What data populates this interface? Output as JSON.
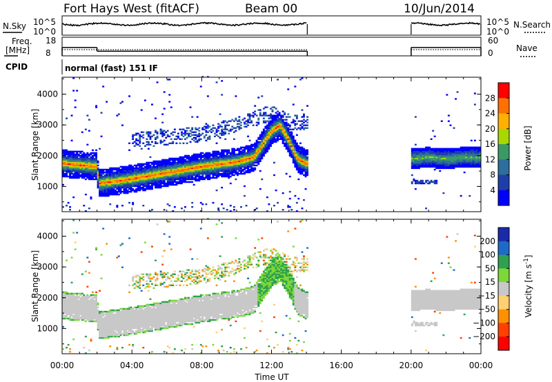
{
  "header": {
    "station": "Fort Hays West (fitACF)",
    "beam": "Beam 00",
    "date": "10/Jun/2014"
  },
  "status": {
    "nsky_label": "N.Sky",
    "nsearch_label": "N.Search",
    "freq_label_line1": "Freq.",
    "freq_label_line2": "[MHz]",
    "nave_label": "Nave",
    "cpid_label": "CPID",
    "cpid_value": "normal (fast) 151 IF",
    "noise_ticks": [
      "10^5",
      "10^0"
    ],
    "noise_ticks_right": [
      "10^5",
      "10^0"
    ],
    "freq_ticks": [
      "18",
      "8"
    ],
    "nave_ticks": [
      "60",
      "0"
    ],
    "data_segments_ut": [
      [
        0,
        14.05
      ],
      [
        20.0,
        24.0
      ]
    ],
    "freq_mhz": [
      [
        0,
        2.0,
        12.5
      ],
      [
        2.0,
        14.05,
        10.5
      ],
      [
        20.0,
        24.0,
        12.5
      ]
    ],
    "nave": [
      [
        0,
        24.0,
        22
      ]
    ]
  },
  "chart_data": [
    {
      "type": "heatmap",
      "quantity": "power",
      "title": "",
      "xlabel": "Time UT",
      "ylabel": "Slant Range [km]",
      "xlim": [
        0,
        24
      ],
      "ylim": [
        180,
        4550
      ],
      "x_ticks": [
        "00:00",
        "04:00",
        "08:00",
        "12:00",
        "16:00",
        "20:00",
        "00:00"
      ],
      "y_ticks": [
        1000,
        2000,
        3000,
        4000
      ],
      "colorbar": {
        "label": "Power [dB]",
        "levels": [
          0,
          4,
          8,
          12,
          16,
          20,
          24,
          28,
          32
        ],
        "tick_labels": [
          "4",
          "8",
          "12",
          "16",
          "20",
          "24",
          "28"
        ],
        "colors": [
          "#0000ff",
          "#1f3fa8",
          "#2d6e9c",
          "#3b9966",
          "#a8d800",
          "#ffb000",
          "#ff7000",
          "#ff0000"
        ]
      },
      "features": [
        {
          "name": "main-echo-band",
          "t": [
            0,
            1,
            2,
            2.1,
            4,
            6,
            8,
            10,
            11,
            12,
            12.5,
            13,
            13.5,
            14
          ],
          "range_km": [
            1750,
            1700,
            1650,
            1100,
            1250,
            1450,
            1650,
            1800,
            1950,
            2800,
            3000,
            2500,
            1900,
            1750
          ],
          "peak_db": 28
        },
        {
          "name": "upper-scatter",
          "t": [
            4,
            6,
            8,
            10,
            12,
            13
          ],
          "range_km": [
            2500,
            2600,
            2700,
            3000,
            3400,
            3100
          ],
          "peak_db": 10
        },
        {
          "name": "late-echo-band",
          "t": [
            20.0,
            21,
            22,
            23,
            24
          ],
          "range_km": [
            1900,
            1950,
            1900,
            1950,
            1950
          ],
          "peak_db": 16
        },
        {
          "name": "low-range-echo",
          "t": [
            20.0,
            21.5
          ],
          "range_km": [
            1150,
            1150
          ],
          "peak_db": 6
        }
      ]
    },
    {
      "type": "heatmap",
      "quantity": "velocity",
      "title": "",
      "xlabel": "Time UT",
      "ylabel": "Slant Range [km]",
      "xlim": [
        0,
        24
      ],
      "ylim": [
        180,
        4550
      ],
      "x_ticks": [
        "00:00",
        "04:00",
        "08:00",
        "12:00",
        "16:00",
        "20:00",
        "00:00"
      ],
      "y_ticks": [
        1000,
        2000,
        3000,
        4000
      ],
      "colorbar": {
        "label": "Velocity [m s^-1]",
        "tick_labels": [
          "200",
          "100",
          "50",
          "15",
          "−15",
          "−50",
          "−100",
          "−200"
        ],
        "colors": [
          "#1a2aa8",
          "#1e6ac8",
          "#2ea050",
          "#7cd838",
          "#c8c8c8",
          "#ffd070",
          "#ff9000",
          "#ff4000",
          "#ff0000"
        ]
      },
      "features": [
        {
          "name": "ground-scatter-band",
          "t": [
            0,
            2,
            4,
            8,
            11,
            14
          ],
          "range_km": [
            2000,
            1900,
            1700,
            2050,
            2300,
            1800
          ],
          "velocity_ms": 0
        },
        {
          "name": "positive-velocity-echo",
          "t": [
            11.5,
            12.5,
            13.5
          ],
          "range_km": [
            2700,
            3200,
            2700
          ],
          "velocity_ms": 60
        },
        {
          "name": "late-ground-scatter",
          "t": [
            20.0,
            24.0
          ],
          "range_km": [
            2000,
            2000
          ],
          "velocity_ms": 0
        }
      ]
    }
  ]
}
